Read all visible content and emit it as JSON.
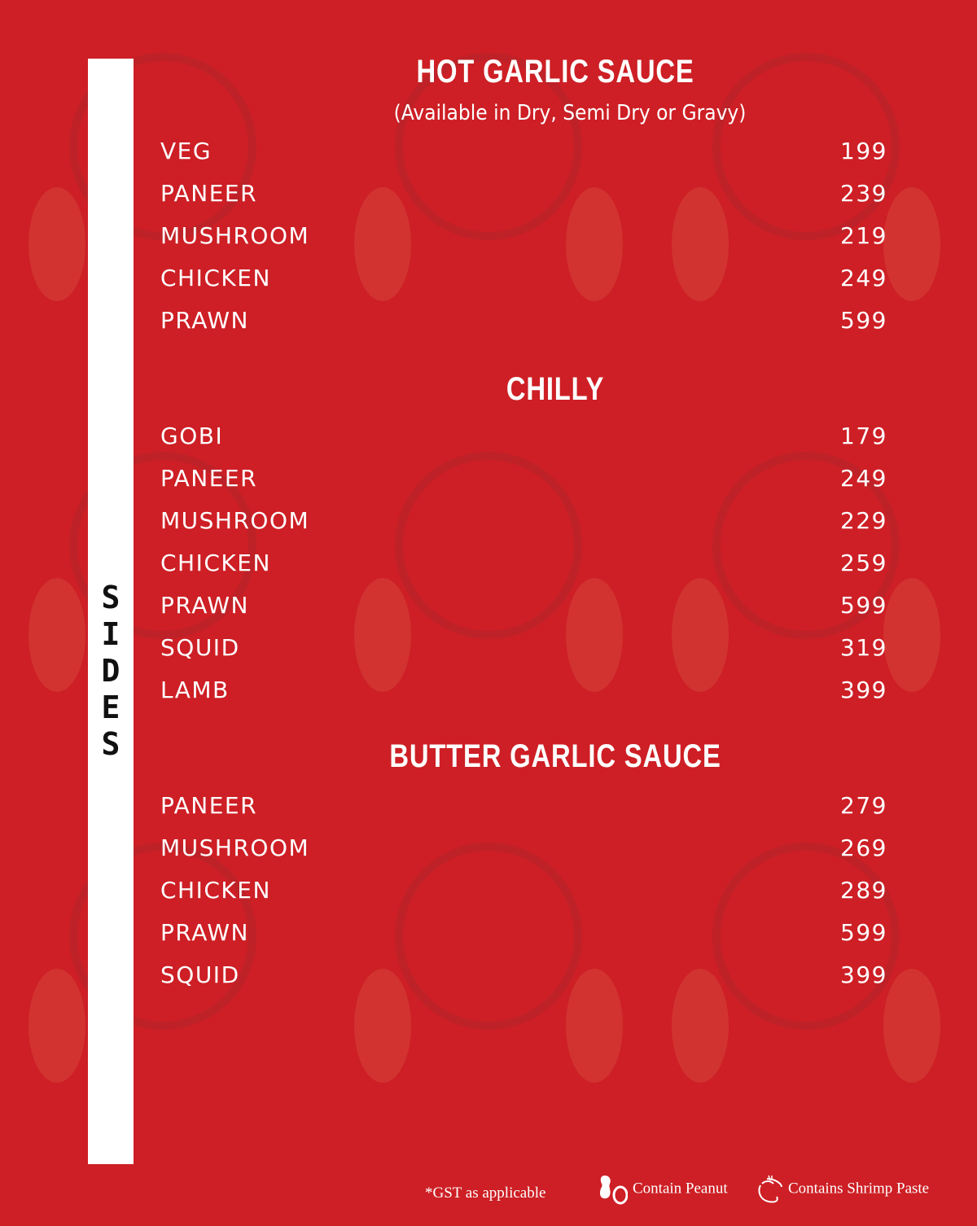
{
  "theme": {
    "background": "#cd1f25",
    "sidebar": "#ffffff",
    "text": "#ffffff"
  },
  "side_label": [
    "S",
    "I",
    "D",
    "E",
    "S"
  ],
  "sections": [
    {
      "title": "HOT GARLIC SAUCE",
      "subtitle": "(Available in Dry, Semi Dry or Gravy)",
      "items": [
        {
          "name": "VEG",
          "price": "199"
        },
        {
          "name": "PANEER",
          "price": "239"
        },
        {
          "name": "MUSHROOM",
          "price": "219"
        },
        {
          "name": "CHICKEN",
          "price": "249"
        },
        {
          "name": "PRAWN",
          "price": "599"
        }
      ]
    },
    {
      "title": "CHILLY",
      "items": [
        {
          "name": "GOBI",
          "price": "179"
        },
        {
          "name": "PANEER",
          "price": "249"
        },
        {
          "name": "MUSHROOM",
          "price": "229"
        },
        {
          "name": "CHICKEN",
          "price": "259"
        },
        {
          "name": "PRAWN",
          "price": "599"
        },
        {
          "name": "SQUID",
          "price": "319"
        },
        {
          "name": "LAMB",
          "price": "399"
        }
      ]
    },
    {
      "title": "BUTTER GARLIC SAUCE",
      "items": [
        {
          "name": "PANEER",
          "price": "279"
        },
        {
          "name": "MUSHROOM",
          "price": "269"
        },
        {
          "name": "CHICKEN",
          "price": "289"
        },
        {
          "name": "PRAWN",
          "price": "599"
        },
        {
          "name": "SQUID",
          "price": "399"
        }
      ]
    }
  ],
  "footer": {
    "gst": "*GST as applicable",
    "peanut": "Contain Peanut",
    "shrimp": "Contains Shrimp Paste",
    "peanut_icon": "peanut-icon",
    "shrimp_icon": "shrimp-icon"
  }
}
